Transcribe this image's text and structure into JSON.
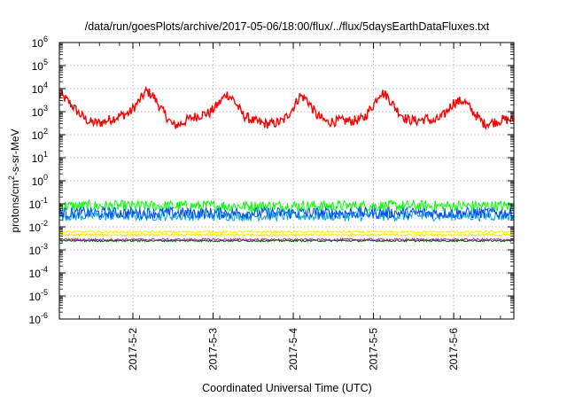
{
  "chart_data": {
    "type": "line",
    "title": "/data/run/goesPlots/archive/2017-05-06/18:00/flux/../flux/5daysEarthDataFluxes.txt",
    "xlabel": "Coordinated Universal Time (UTC)",
    "ylabel": "protons/cm²-s-sr-MeV",
    "yscale": "log",
    "ylim": [
      1e-06,
      1000000.0
    ],
    "ytick_labels": [
      {
        "base": "10",
        "exp": "-6"
      },
      {
        "base": "10",
        "exp": "-5"
      },
      {
        "base": "10",
        "exp": "-4"
      },
      {
        "base": "10",
        "exp": "-3"
      },
      {
        "base": "10",
        "exp": "-2"
      },
      {
        "base": "10",
        "exp": "-1"
      },
      {
        "base": "10",
        "exp": "0"
      },
      {
        "base": "10",
        "exp": "1"
      },
      {
        "base": "10",
        "exp": "2"
      },
      {
        "base": "10",
        "exp": "3"
      },
      {
        "base": "10",
        "exp": "4"
      },
      {
        "base": "10",
        "exp": "5"
      },
      {
        "base": "10",
        "exp": "6"
      }
    ],
    "xlim": [
      "2017-05-01T02:00",
      "2017-05-06T18:00"
    ],
    "xticks": [
      {
        "label": "2017-5-2",
        "value": "2017-05-02T00:00"
      },
      {
        "label": "2017-5-3",
        "value": "2017-05-03T00:00"
      },
      {
        "label": "2017-5-4",
        "value": "2017-05-04T00:00"
      },
      {
        "label": "2017-5-5",
        "value": "2017-05-05T00:00"
      },
      {
        "label": "2017-5-6",
        "value": "2017-05-06T00:00"
      }
    ],
    "grid": true,
    "legend": "none",
    "series": [
      {
        "color": "#ff0000",
        "noise": 0.22,
        "points": [
          [
            "2017-05-01T02:00",
            6000
          ],
          [
            "2017-05-01T05:00",
            2500
          ],
          [
            "2017-05-01T08:00",
            800
          ],
          [
            "2017-05-01T11:00",
            350
          ],
          [
            "2017-05-01T14:00",
            320
          ],
          [
            "2017-05-01T17:00",
            450
          ],
          [
            "2017-05-01T20:00",
            650
          ],
          [
            "2017-05-01T23:00",
            900
          ],
          [
            "2017-05-02T02:00",
            3000
          ],
          [
            "2017-05-02T04:00",
            8000
          ],
          [
            "2017-05-02T06:00",
            5000
          ],
          [
            "2017-05-02T09:00",
            1000
          ],
          [
            "2017-05-02T12:00",
            250
          ],
          [
            "2017-05-02T14:00",
            280
          ],
          [
            "2017-05-02T17:00",
            500
          ],
          [
            "2017-05-02T20:00",
            700
          ],
          [
            "2017-05-02T23:00",
            900
          ],
          [
            "2017-05-03T02:00",
            2500
          ],
          [
            "2017-05-03T04:00",
            6000
          ],
          [
            "2017-05-03T06:00",
            3500
          ],
          [
            "2017-05-03T09:00",
            700
          ],
          [
            "2017-05-03T12:00",
            400
          ],
          [
            "2017-05-03T15:00",
            300
          ],
          [
            "2017-05-03T18:00",
            300
          ],
          [
            "2017-05-03T21:00",
            400
          ],
          [
            "2017-05-04T00:00",
            1500
          ],
          [
            "2017-05-04T02:00",
            5000
          ],
          [
            "2017-05-04T04:00",
            3500
          ],
          [
            "2017-05-04T07:00",
            700
          ],
          [
            "2017-05-04T10:00",
            350
          ],
          [
            "2017-05-04T14:00",
            400
          ],
          [
            "2017-05-04T18:00",
            400
          ],
          [
            "2017-05-04T21:00",
            500
          ],
          [
            "2017-05-05T00:00",
            2000
          ],
          [
            "2017-05-05T02:00",
            7000
          ],
          [
            "2017-05-05T04:00",
            5000
          ],
          [
            "2017-05-05T07:00",
            1200
          ],
          [
            "2017-05-05T10:00",
            450
          ],
          [
            "2017-05-05T13:00",
            400
          ],
          [
            "2017-05-05T16:00",
            500
          ],
          [
            "2017-05-05T18:00",
            350
          ],
          [
            "2017-05-05T21:00",
            700
          ],
          [
            "2017-05-06T00:00",
            2500
          ],
          [
            "2017-05-06T03:00",
            3000
          ],
          [
            "2017-05-06T06:00",
            900
          ],
          [
            "2017-05-06T09:00",
            300
          ],
          [
            "2017-05-06T12:00",
            350
          ],
          [
            "2017-05-06T15:00",
            450
          ],
          [
            "2017-05-06T18:00",
            450
          ]
        ]
      },
      {
        "color": "#00ff00",
        "level": 0.08,
        "noise": 0.25,
        "points": [
          [
            "2017-05-01T02:00",
            0.08
          ],
          [
            "2017-05-06T18:00",
            0.08
          ]
        ]
      },
      {
        "color": "#00aacc",
        "level": 0.03,
        "noise": 0.22,
        "points": [
          [
            "2017-05-01T02:00",
            0.03
          ],
          [
            "2017-05-06T18:00",
            0.03
          ]
        ]
      },
      {
        "color": "#0044ff",
        "level": 0.04,
        "noise": 0.25,
        "points": [
          [
            "2017-05-01T02:00",
            0.04
          ],
          [
            "2017-05-06T18:00",
            0.04
          ]
        ]
      },
      {
        "color": "#ffee00",
        "level": 0.006,
        "noise": 0.05,
        "points": [
          [
            "2017-05-01T02:00",
            0.006
          ],
          [
            "2017-05-06T18:00",
            0.006
          ]
        ]
      },
      {
        "color": "#ffee00",
        "level": 0.0045,
        "noise": 0.05,
        "points": [
          [
            "2017-05-01T02:00",
            0.0045
          ],
          [
            "2017-05-06T18:00",
            0.0045
          ]
        ]
      },
      {
        "color": "#aa33aa",
        "level": 0.0028,
        "noise": 0.05,
        "points": [
          [
            "2017-05-01T02:00",
            0.0028
          ],
          [
            "2017-05-06T18:00",
            0.0028
          ]
        ]
      },
      {
        "color": "#005500",
        "level": 0.0025,
        "noise": 0.04,
        "points": [
          [
            "2017-05-01T02:00",
            0.0025
          ],
          [
            "2017-05-06T18:00",
            0.0025
          ]
        ]
      }
    ]
  }
}
